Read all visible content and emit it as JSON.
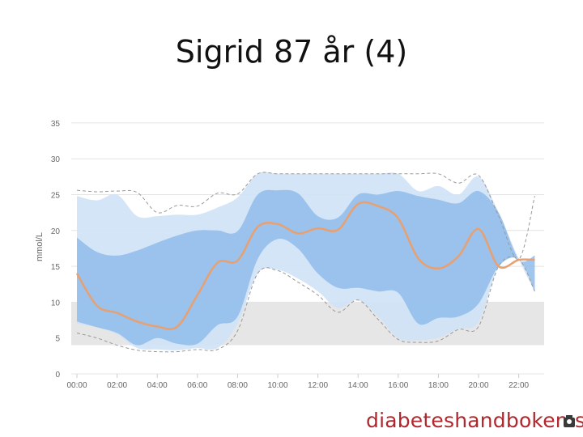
{
  "slide": {
    "title": "Sigrid 87 år (4)"
  },
  "watermark": {
    "text": "diabeteshandboken.se",
    "icon": "seal-icon"
  },
  "colors": {
    "band_outer": "#cfe2f7",
    "band_inner": "#8fbcea",
    "median": "#e8a070",
    "extremes": "#999999",
    "target_range": "#e6e6e6",
    "grid": "#e4e4e4",
    "tick_text": "#666666"
  },
  "chart_data": {
    "type": "area",
    "title": "",
    "xlabel": "",
    "ylabel": "mmol/L",
    "ylim": [
      0,
      35
    ],
    "y_ticks": [
      0,
      5,
      10,
      15,
      20,
      25,
      30,
      35
    ],
    "x_ticks": [
      "00:00",
      "02:00",
      "04:00",
      "06:00",
      "08:00",
      "10:00",
      "12:00",
      "14:00",
      "16:00",
      "18:00",
      "20:00",
      "22:00"
    ],
    "x_range_hours": [
      0,
      23
    ],
    "grid": true,
    "legend": "none",
    "target_range": [
      4,
      10
    ],
    "x": [
      0,
      1,
      2,
      3,
      4,
      5,
      6,
      7,
      8,
      9,
      10,
      11,
      12,
      13,
      14,
      15,
      16,
      17,
      18,
      19,
      20,
      21,
      22,
      22.8
    ],
    "series": [
      {
        "role": "max",
        "values": [
          25.6,
          25.4,
          25.5,
          25.3,
          22.5,
          23.5,
          23.4,
          25.2,
          25.1,
          27.9,
          27.9,
          27.9,
          27.9,
          27.9,
          27.9,
          27.9,
          27.9,
          27.9,
          27.9,
          26.6,
          27.7,
          22.0,
          16.0,
          24.8
        ]
      },
      {
        "role": "p90",
        "values": [
          24.8,
          24.2,
          25.0,
          22.0,
          22.0,
          22.2,
          22.2,
          23.2,
          24.6,
          27.9,
          27.9,
          27.9,
          27.9,
          27.9,
          27.9,
          27.9,
          27.9,
          25.5,
          26.2,
          25.0,
          27.5,
          22.5,
          16.0,
          11.5
        ]
      },
      {
        "role": "p75",
        "values": [
          19.0,
          17.0,
          16.5,
          17.2,
          18.3,
          19.3,
          20.0,
          20.0,
          19.9,
          25.0,
          25.6,
          25.2,
          22.0,
          21.8,
          25.0,
          25.0,
          25.5,
          24.8,
          24.3,
          23.8,
          25.5,
          22.5,
          16.0,
          16.5
        ]
      },
      {
        "role": "median",
        "values": [
          14.0,
          9.5,
          8.5,
          7.3,
          6.6,
          6.6,
          11.0,
          15.5,
          15.8,
          20.5,
          20.9,
          19.6,
          20.3,
          20.1,
          23.7,
          23.4,
          21.7,
          16.1,
          14.7,
          16.4,
          20.2,
          15.0,
          15.9,
          15.9
        ]
      },
      {
        "role": "p25",
        "values": [
          7.3,
          6.5,
          5.7,
          4.0,
          5.0,
          4.2,
          4.2,
          6.8,
          8.0,
          16.0,
          18.8,
          17.5,
          14.0,
          12.0,
          12.0,
          11.5,
          11.3,
          7.0,
          7.8,
          8.0,
          9.8,
          15.0,
          16.0,
          11.5
        ]
      },
      {
        "role": "p10",
        "values": [
          7.0,
          6.5,
          5.5,
          3.6,
          3.4,
          3.3,
          3.6,
          3.6,
          7.0,
          14.0,
          14.5,
          13.3,
          11.5,
          9.2,
          10.3,
          8.0,
          5.0,
          4.7,
          5.0,
          6.3,
          7.2,
          15.0,
          16.0,
          11.5
        ]
      },
      {
        "role": "min",
        "values": [
          5.7,
          5.0,
          4.0,
          3.3,
          3.1,
          3.1,
          3.4,
          3.4,
          6.0,
          14.0,
          14.4,
          12.8,
          11.0,
          8.6,
          10.3,
          7.6,
          4.8,
          4.4,
          4.6,
          6.2,
          6.6,
          15.0,
          16.0,
          11.5
        ]
      }
    ]
  }
}
